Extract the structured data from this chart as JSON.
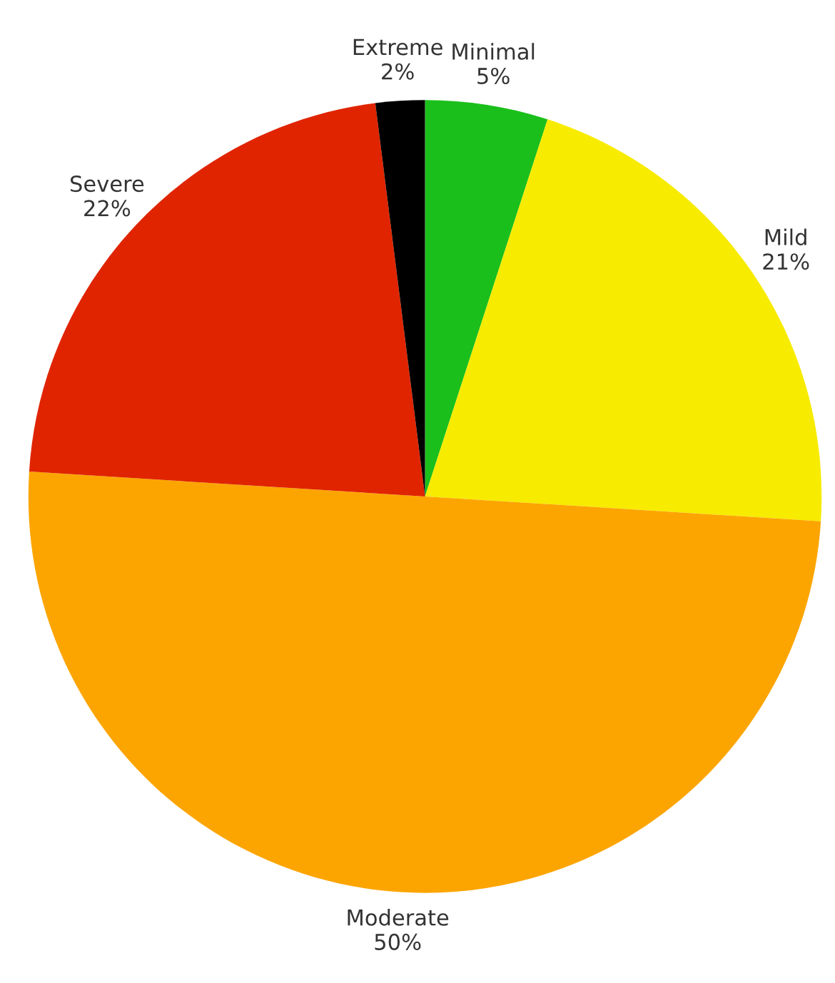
{
  "chart_data": {
    "type": "pie",
    "categories": [
      "Minimal",
      "Mild",
      "Moderate",
      "Severe",
      "Extreme"
    ],
    "values": [
      5,
      21,
      50,
      22,
      2
    ],
    "value_labels": [
      "5%",
      "21%",
      "50%",
      "22%",
      "2%"
    ],
    "colors": [
      "#1bbf1b",
      "#f7eb00",
      "#fca500",
      "#e02400",
      "#000000"
    ],
    "legend": false
  }
}
